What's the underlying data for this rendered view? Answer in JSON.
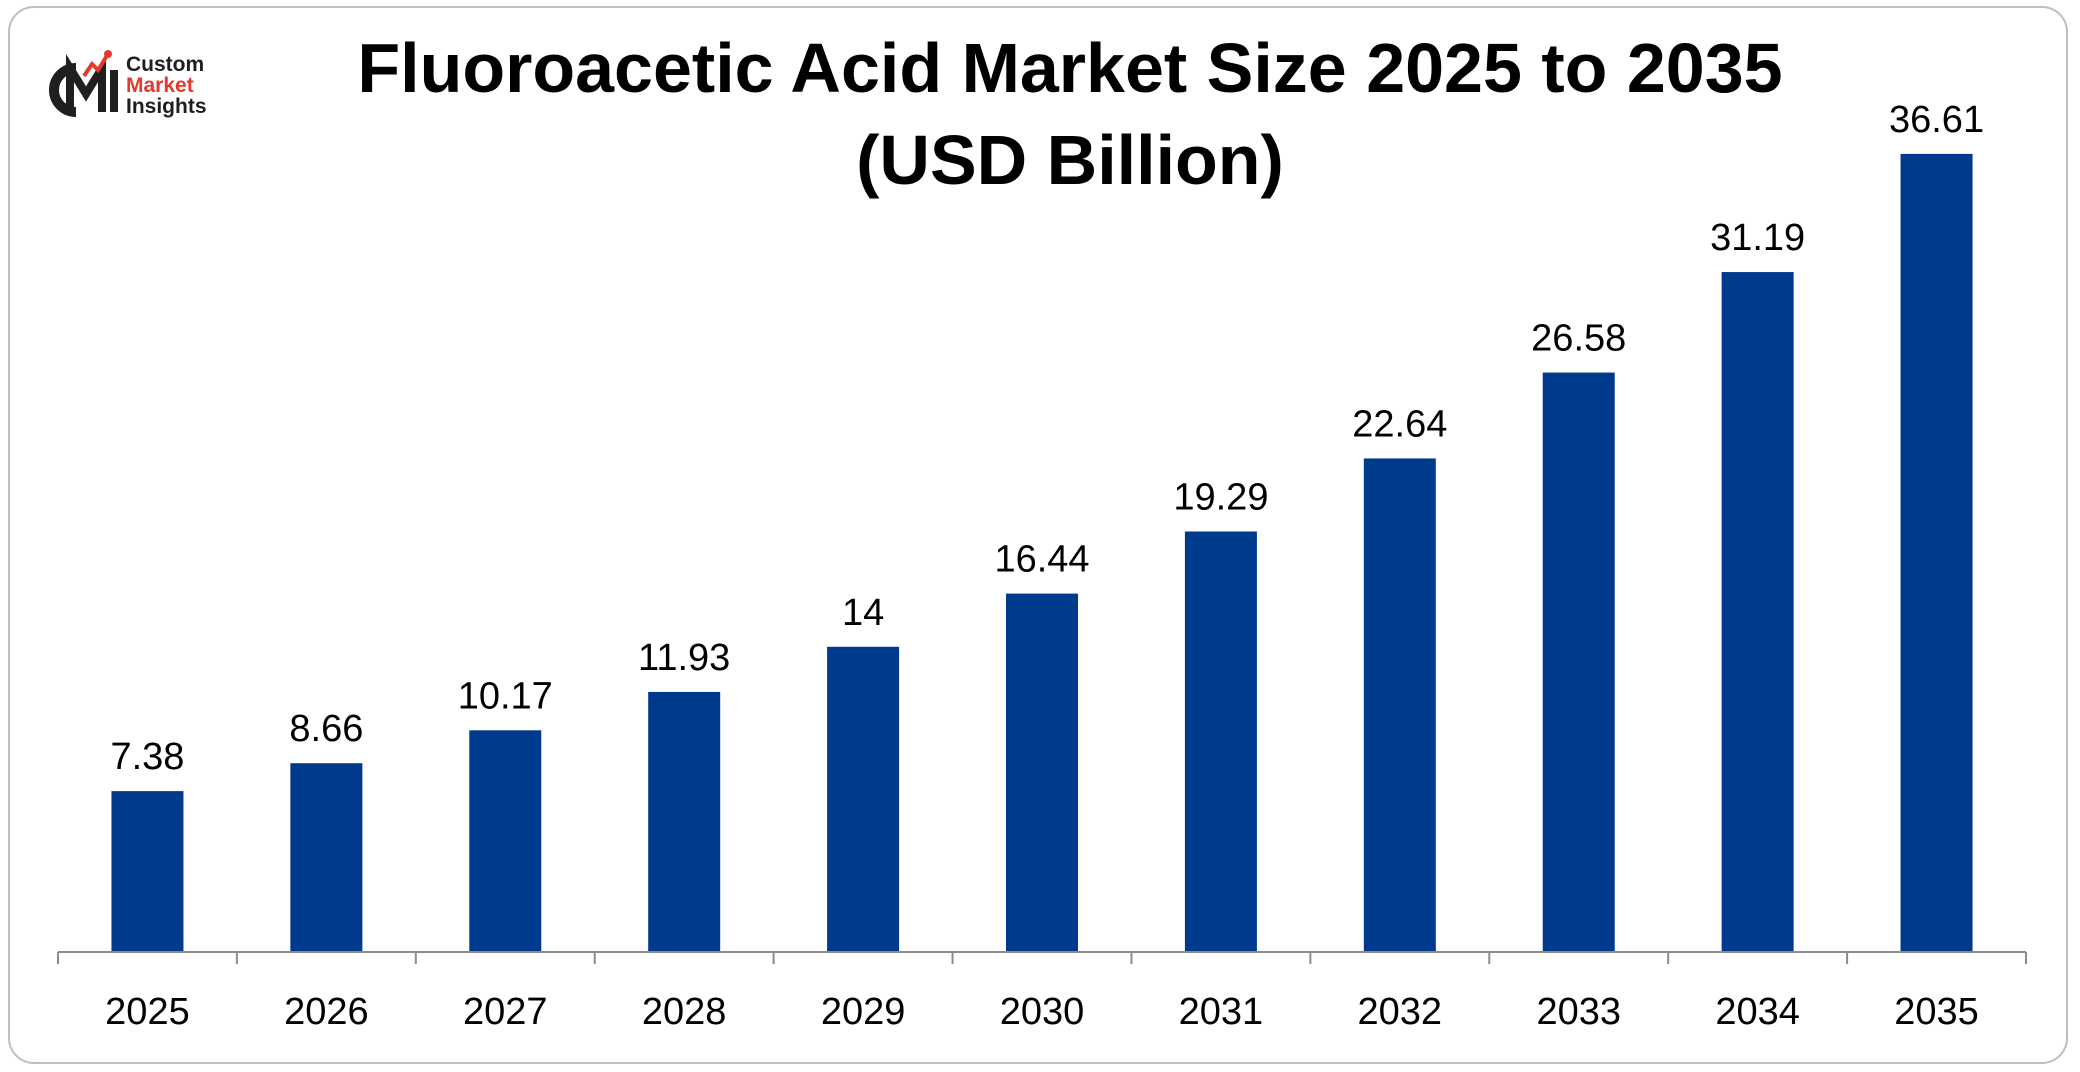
{
  "brand": {
    "line1": "Custom",
    "line2": "Market",
    "line3": "Insights",
    "mark_letters": "CMI",
    "accent_color": "#e23b2e"
  },
  "chart_data": {
    "type": "bar",
    "title_line1": "Fluoroacetic Acid Market Size 2025 to 2035",
    "title_line2": "(USD Billion)",
    "xlabel": "",
    "ylabel": "",
    "categories": [
      "2025",
      "2026",
      "2027",
      "2028",
      "2029",
      "2030",
      "2031",
      "2032",
      "2033",
      "2034",
      "2035"
    ],
    "values": [
      7.38,
      8.66,
      10.17,
      11.93,
      14,
      16.44,
      19.29,
      22.64,
      26.58,
      31.19,
      36.61
    ],
    "value_labels": [
      "7.38",
      "8.66",
      "10.17",
      "11.93",
      "14",
      "16.44",
      "19.29",
      "22.64",
      "26.58",
      "31.19",
      "36.61"
    ],
    "ylim": [
      0,
      40
    ],
    "grid": false,
    "legend": "none",
    "bar_color": "#003a8c",
    "axis_color": "#8c8c8c"
  }
}
